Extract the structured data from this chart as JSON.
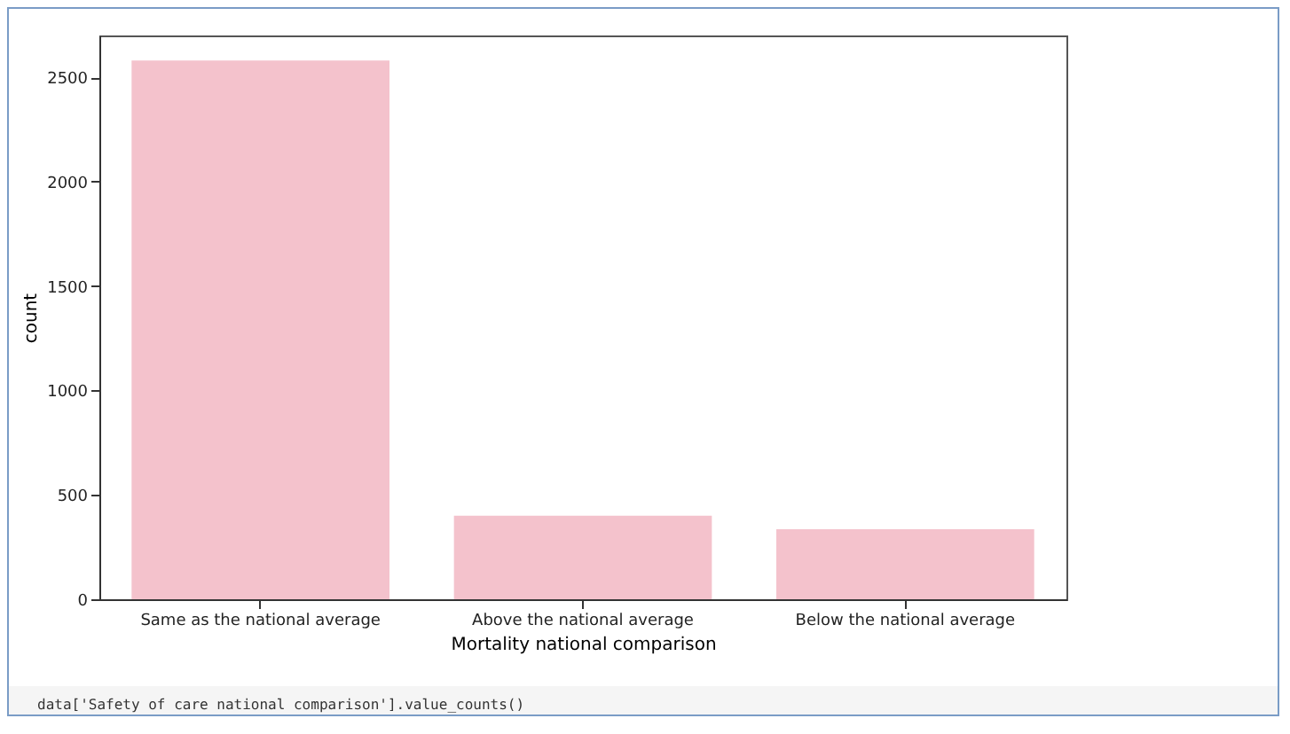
{
  "chart_data": {
    "type": "bar",
    "xlabel": "Mortality national comparison",
    "ylabel": "count",
    "categories": [
      "Same as the national average",
      "Above the national average",
      "Below the national average"
    ],
    "values": [
      2580,
      400,
      335
    ],
    "color": "#f4c2cc",
    "ylim": [
      0,
      2700
    ],
    "yticks": [
      0,
      500,
      1000,
      1500,
      2000,
      2500
    ],
    "grid": false,
    "annotations": [
      "data['Safety of care national comparison'].value_counts()"
    ]
  }
}
